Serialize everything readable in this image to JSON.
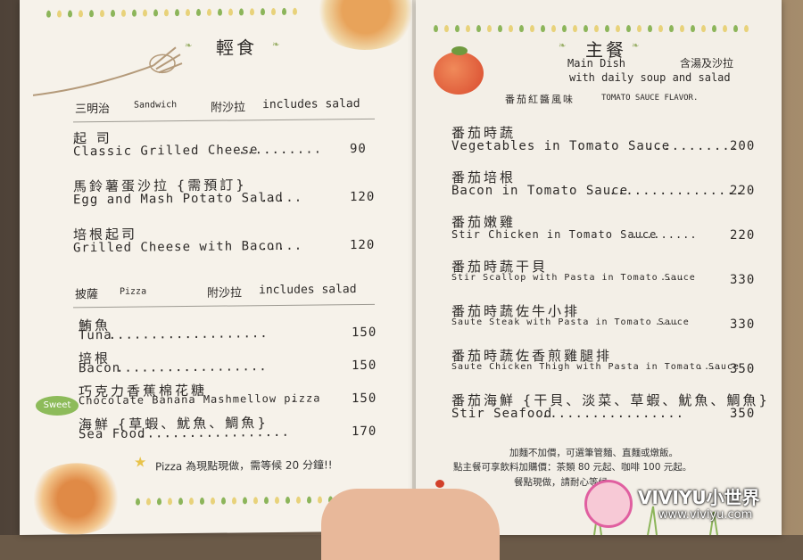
{
  "left": {
    "title": "輕食",
    "sandwich_header": {
      "zh": "三明治",
      "en": "Sandwich",
      "note_zh": "附沙拉",
      "note_en": "includes salad"
    },
    "sandwich_items": [
      {
        "zh": "起 司",
        "en": "Classic Grilled Cheese",
        "dots": "..........",
        "price": "90"
      },
      {
        "zh": "馬鈴薯蛋沙拉 {需預訂}",
        "en": "Egg and Mash Potato Salad",
        "dots": ".....",
        "price": "120"
      },
      {
        "zh": "培根起司",
        "en": "Grilled Cheese with Bacon",
        "dots": ".....",
        "price": "120"
      }
    ],
    "pizza_header": {
      "zh": "披薩",
      "en": "Pizza",
      "note_zh": "附沙拉",
      "note_en": "includes salad"
    },
    "pizza_items": [
      {
        "zh": "鮪魚",
        "en": "Tuna",
        "dots": "...................",
        "price": "150"
      },
      {
        "zh": "培根",
        "en": "Bacon",
        "dots": "..................",
        "price": "150"
      },
      {
        "zh": "巧克力香蕉棉花糖",
        "en": "Chocolate Banana Mashmellow pizza",
        "dots": ".",
        "price": "150",
        "badge": "Sweet"
      },
      {
        "zh": "海鮮 {草蝦、魷魚、鯛魚}",
        "en": "Sea Food",
        "dots": "..................",
        "price": "170"
      }
    ],
    "footer_note": "Pizza 為現點現做，需等候 20 分鐘!!"
  },
  "right": {
    "title": "主餐",
    "subtitle_en_1": "Main Dish",
    "subtitle_zh": "含湯及沙拉",
    "subtitle_en_2": "with daily soup and salad",
    "flavor_zh": "番茄紅醬風味",
    "flavor_en": "TOMATO SAUCE FLAVOR.",
    "items": [
      {
        "zh": "番茄時蔬",
        "en": "Vegetables in Tomato Sauce",
        "dots": "...........",
        "price": "200"
      },
      {
        "zh": "番茄培根",
        "en": "Bacon in Tomato Sauce",
        "dots": "................",
        "price": "220"
      },
      {
        "zh": "番茄嫩雞",
        "en": "Stir Chicken in Tomato Sauce",
        "dots": ".........",
        "price": "220"
      },
      {
        "zh": "番茄時蔬干貝",
        "en": "Stir Scallop with Pasta in Tomato Sauce",
        "dots": "....",
        "price": "330"
      },
      {
        "zh": "番茄時蔬佐牛小排",
        "en": "Saute Steak with Pasta in Tomato Sauce",
        "dots": "....",
        "price": "330"
      },
      {
        "zh": "番茄時蔬佐香煎雞腿排",
        "en": "Saute Chicken Thigh with Pasta in Tomato Sauce",
        "dots": "....",
        "price": "350"
      },
      {
        "zh": "番茄海鮮 {干貝、淡菜、草蝦、魷魚、鯛魚}",
        "en": "Stir Seafood",
        "dots": ".................",
        "price": "350"
      }
    ],
    "notes": [
      "加麵不加價，可選筆管麵、直麵或燉飯。",
      "點主餐可享飲料加購價：茶類 80 元起、咖啡 100 元起。",
      "餐點現做，請耐心等候。"
    ]
  },
  "watermark": {
    "brand": "VIVIYU小世界",
    "url": "www.viviyu.com"
  },
  "colors": {
    "dots_green": "#8cb55a",
    "dots_yellow": "#e8d27a",
    "tomato": "#e0553a",
    "paper": "#f6f2ea"
  }
}
